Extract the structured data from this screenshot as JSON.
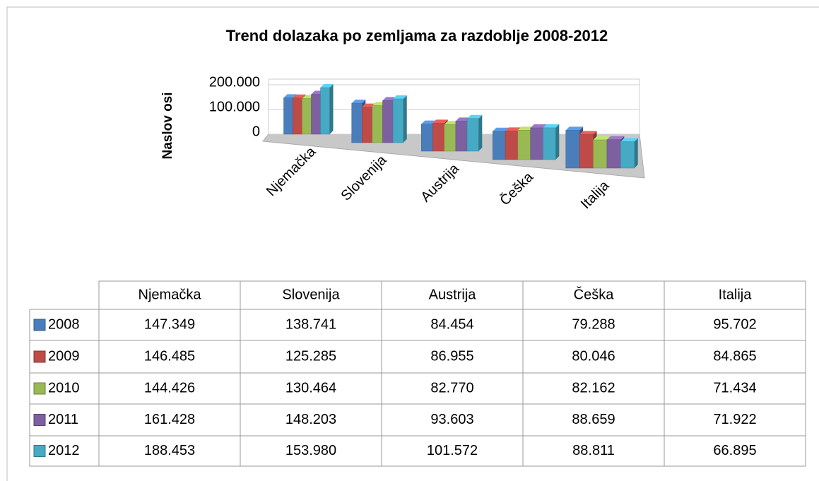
{
  "chart_data": {
    "type": "bar",
    "title": "Trend dolazaka po zemljama za razdoblje 2008-2012",
    "y_axis_label": "Naslov osi",
    "categories": [
      "Njemačka",
      "Slovenija",
      "Austrija",
      "Češka",
      "Italija"
    ],
    "series": [
      {
        "name": "2008",
        "color": "#4a7ebb",
        "values": [
          147349,
          138741,
          84454,
          79288,
          95702
        ],
        "value_labels": [
          "147.349",
          "138.741",
          "84.454",
          "79.288",
          "95.702"
        ]
      },
      {
        "name": "2009",
        "color": "#be4b48",
        "values": [
          146485,
          125285,
          86955,
          80046,
          84865
        ],
        "value_labels": [
          "146.485",
          "125.285",
          "86.955",
          "80.046",
          "84.865"
        ]
      },
      {
        "name": "2010",
        "color": "#98b954",
        "values": [
          144426,
          130464,
          82770,
          82162,
          71434
        ],
        "value_labels": [
          "144.426",
          "130.464",
          "82.770",
          "82.162",
          "71.434"
        ]
      },
      {
        "name": "2011",
        "color": "#7d60a0",
        "values": [
          161428,
          148203,
          93603,
          88659,
          71922
        ],
        "value_labels": [
          "161.428",
          "148.203",
          "93.603",
          "88.659",
          "71.922"
        ]
      },
      {
        "name": "2012",
        "color": "#46aac5",
        "values": [
          188453,
          153980,
          101572,
          88811,
          66895
        ],
        "value_labels": [
          "188.453",
          "153.980",
          "101.572",
          "88.811",
          "66.895"
        ]
      }
    ],
    "ylim": [
      0,
      200000
    ],
    "yticks": [
      {
        "value": 0,
        "label": "0"
      },
      {
        "value": 100000,
        "label": "100.000"
      },
      {
        "value": 200000,
        "label": "200.000"
      }
    ],
    "grid": true,
    "data_table": true
  }
}
